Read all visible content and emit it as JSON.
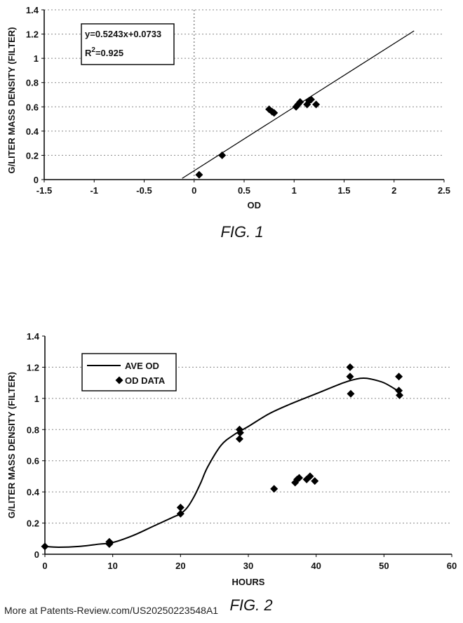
{
  "chart_data": [
    {
      "type": "scatter",
      "figure_label": "FIG. 1",
      "xlabel": "OD",
      "ylabel": "G/LITER MASS DENSITY (FILTER)",
      "xlim": [
        -1.5,
        2.5
      ],
      "ylim": [
        0,
        1.4
      ],
      "xticks": [
        "-1.5",
        "-1",
        "-0.5",
        "0",
        "0.5",
        "1",
        "1.5",
        "2",
        "2.5"
      ],
      "yticks": [
        "0",
        "0.2",
        "0.4",
        "0.6",
        "0.8",
        "1",
        "1.2",
        "1.4"
      ],
      "grid": "horizontal-dotted",
      "annotation": {
        "equation": "y=0.5243x+0.0733",
        "r2_prefix": "R",
        "r2_sup": "2",
        "r2_value": "=0.925"
      },
      "trendline": {
        "slope": 0.5243,
        "intercept": 0.0733,
        "x_range": [
          -0.12,
          2.2
        ]
      },
      "vertical_reference_line": {
        "x": 0
      },
      "points": [
        {
          "x": 0.05,
          "y": 0.04
        },
        {
          "x": 0.28,
          "y": 0.2
        },
        {
          "x": 0.75,
          "y": 0.58
        },
        {
          "x": 0.78,
          "y": 0.56
        },
        {
          "x": 0.8,
          "y": 0.55
        },
        {
          "x": 1.02,
          "y": 0.6
        },
        {
          "x": 1.04,
          "y": 0.62
        },
        {
          "x": 1.06,
          "y": 0.64
        },
        {
          "x": 1.13,
          "y": 0.62
        },
        {
          "x": 1.15,
          "y": 0.65
        },
        {
          "x": 1.17,
          "y": 0.66
        },
        {
          "x": 1.22,
          "y": 0.62
        }
      ]
    },
    {
      "type": "line",
      "figure_label": "FIG. 2",
      "xlabel": "HOURS",
      "ylabel": "G/LITER MASS DENSITY (FILTER)",
      "xlim": [
        0,
        60
      ],
      "ylim": [
        0,
        1.4
      ],
      "xticks": [
        "0",
        "10",
        "20",
        "30",
        "40",
        "50",
        "60"
      ],
      "yticks": [
        "0",
        "0.2",
        "0.4",
        "0.6",
        "0.8",
        "1",
        "1.2",
        "1.4"
      ],
      "grid": "horizontal-dotted",
      "legend": {
        "position": "top-left",
        "items": [
          "AVE OD",
          "OD DATA"
        ]
      },
      "series": [
        {
          "name": "AVE OD",
          "kind": "line",
          "x": [
            0,
            2,
            5,
            8,
            10,
            13,
            16,
            19,
            20,
            21,
            22,
            23,
            24,
            26,
            28,
            30,
            33,
            36,
            40,
            44,
            46,
            47,
            48,
            50,
            52
          ],
          "y": [
            0.05,
            0.045,
            0.05,
            0.065,
            0.075,
            0.12,
            0.18,
            0.24,
            0.26,
            0.3,
            0.37,
            0.46,
            0.56,
            0.7,
            0.77,
            0.82,
            0.9,
            0.96,
            1.03,
            1.1,
            1.125,
            1.13,
            1.125,
            1.1,
            1.05
          ]
        },
        {
          "name": "OD DATA",
          "kind": "scatter",
          "x": [
            0,
            9.5,
            9.5,
            9.6,
            20,
            20,
            28.7,
            28.8,
            28.7,
            33.8,
            36.9,
            37.2,
            37.5,
            38.6,
            39.1,
            39.8,
            45,
            45,
            45.1,
            52.2,
            52.2,
            52.3
          ],
          "y": [
            0.05,
            0.08,
            0.065,
            0.075,
            0.3,
            0.26,
            0.8,
            0.78,
            0.74,
            0.42,
            0.46,
            0.48,
            0.49,
            0.48,
            0.5,
            0.47,
            1.2,
            1.14,
            1.03,
            1.14,
            1.05,
            1.02
          ]
        }
      ]
    }
  ],
  "footer": "More at Patents-Review.com/US20250223548A1"
}
